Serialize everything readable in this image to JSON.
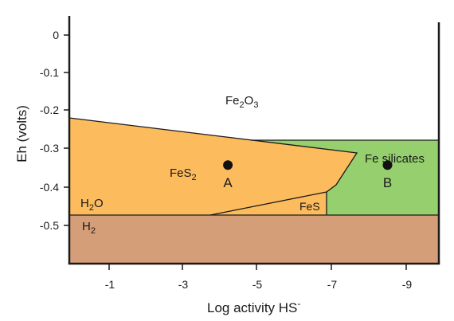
{
  "colors": {
    "pyrite_orange": "#fcbc5e",
    "silicate_green": "#95cf6e",
    "h2_brown": "#d49f78",
    "frame": "#1a1a1a",
    "point": "#111111"
  },
  "axes": {
    "x_label": "Log activity HS",
    "x_label_sup": "-",
    "y_label": "Eh (volts)",
    "x_range": [
      0,
      -10
    ],
    "y_range": [
      0.03,
      -0.6
    ],
    "x_ticks": [
      "-1",
      "-3",
      "-5",
      "-7",
      "-9"
    ],
    "y_ticks": [
      "0",
      "-0.1",
      "-0.2",
      "-0.3",
      "-0.4",
      "-0.5"
    ]
  },
  "fields": {
    "fe2o3": {
      "base": "Fe",
      "sub1": "2",
      "mid": "O",
      "sub2": "3"
    },
    "fes2": {
      "base": "FeS",
      "sub": "2"
    },
    "fes": "FeS",
    "fe_silicates": "Fe silicates",
    "h2o": {
      "base": "H",
      "sub": "2",
      "tail": "O"
    },
    "h2": {
      "base": "H",
      "sub": "2"
    }
  },
  "points": [
    {
      "label": "A",
      "x": -4.2,
      "y": -0.37
    },
    {
      "label": "B",
      "x": -8.5,
      "y": -0.37
    }
  ]
}
